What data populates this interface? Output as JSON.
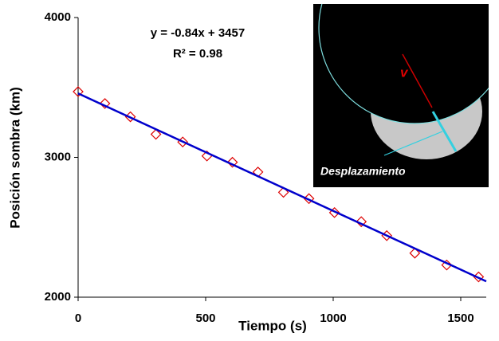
{
  "chart_data": {
    "type": "scatter",
    "x_label": "Tiempo (s)",
    "y_label": "Posición sombra (km)",
    "x": [
      0,
      105,
      205,
      305,
      410,
      505,
      605,
      705,
      805,
      905,
      1005,
      1110,
      1210,
      1320,
      1445,
      1570
    ],
    "values": [
      3470,
      3385,
      3290,
      3165,
      3110,
      3010,
      2965,
      2895,
      2750,
      2705,
      2605,
      2540,
      2440,
      2315,
      2230,
      2145
    ],
    "color": "#dd0000",
    "trendline": {
      "x": [
        0,
        1600
      ],
      "values": [
        3457,
        2113
      ],
      "color": "#0000cc"
    },
    "annotations": [
      "y = -0.84x + 3457",
      "R² = 0.98"
    ],
    "xlim": [
      0,
      1600
    ],
    "xticks": [
      0,
      500,
      1000,
      1500
    ],
    "ylim": [
      2000,
      4000
    ],
    "yticks": [
      2000,
      3000,
      4000
    ],
    "grid": false
  },
  "inset": {
    "velocity_label": "v",
    "displacement_label": "Desplazamiento"
  }
}
